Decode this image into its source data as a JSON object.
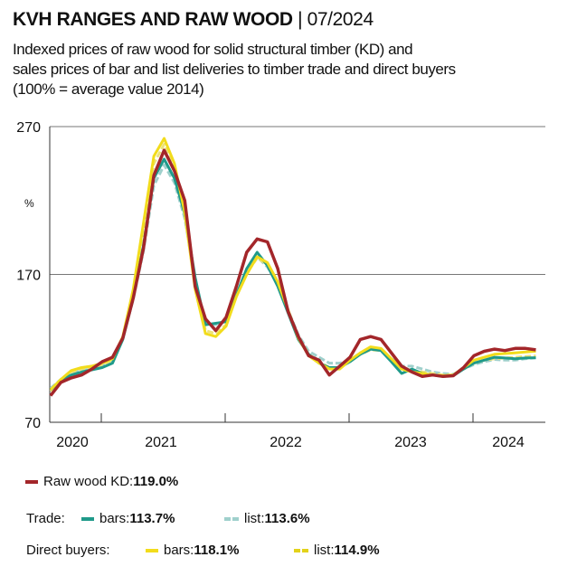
{
  "header": {
    "title": "KVH RANGES AND RAW WOOD",
    "separator": " | ",
    "date": "07/2024",
    "subtitle_lines": [
      "Indexed prices of raw wood for solid structural timber (KD) and",
      "sales prices of bar and list deliveries to timber trade and direct buyers",
      "(100% = average value 2014)"
    ]
  },
  "chart_data": {
    "type": "line",
    "ylabel": "%",
    "ylim": [
      70,
      270
    ],
    "yticks": [
      "270",
      "170",
      "70"
    ],
    "gridlines": [
      170,
      270
    ],
    "x_start": "2020-08",
    "x_end": "2024-07",
    "x_frequency": "monthly",
    "year_labels": [
      "2020",
      "2021",
      "2022",
      "2023",
      "2024"
    ],
    "legend_placement": "bottom",
    "series": [
      {
        "name": "Raw wood KD",
        "color": "#a3262a",
        "style": "solid",
        "values": [
          88,
          97,
          100,
          102,
          106,
          111,
          114,
          127,
          154,
          188,
          237,
          254,
          240,
          220,
          162,
          140,
          132,
          141,
          162,
          185,
          194,
          192,
          174,
          145,
          128,
          115,
          112,
          102,
          108,
          114,
          126,
          128,
          126,
          117,
          108,
          104,
          101,
          102,
          101,
          101.5,
          107,
          115,
          118,
          119.5,
          118.5,
          120,
          120,
          119
        ]
      },
      {
        "name": "bars",
        "group": "Trade",
        "color": "#1f9a8a",
        "style": "solid",
        "values": [
          92,
          98,
          102,
          104,
          105.5,
          107,
          110,
          126,
          154,
          190,
          235,
          248,
          235,
          211,
          168,
          136,
          137,
          138,
          156,
          174,
          185,
          176,
          162,
          144,
          126,
          116,
          110,
          107,
          107,
          111,
          116,
          119.5,
          118.5,
          111,
          103,
          106,
          103,
          102,
          101,
          101.5,
          106,
          110,
          112,
          114,
          113.5,
          113,
          113.5,
          113.7
        ]
      },
      {
        "name": "list",
        "group": "Trade",
        "color": "#9fd0cc",
        "style": "dashed",
        "values": [
          93,
          99,
          103,
          105,
          106,
          108,
          111,
          127,
          153,
          186,
          230,
          244,
          232,
          208,
          166,
          137,
          136,
          139,
          157,
          172,
          182,
          175,
          163,
          146,
          129,
          118,
          114,
          110,
          110,
          112,
          117,
          120,
          119,
          113,
          108,
          108,
          106,
          104,
          103,
          102.5,
          106,
          109,
          111,
          112.5,
          112,
          112,
          113,
          113.6
        ]
      },
      {
        "name": "bars",
        "group": "Direct buyers",
        "color": "#f2dc1c",
        "style": "solid",
        "values": [
          92,
          99,
          105,
          107,
          108,
          110,
          113,
          128,
          160,
          205,
          250,
          262,
          245,
          212,
          160,
          130,
          128,
          135,
          155,
          170,
          182,
          178,
          165,
          146,
          127,
          115,
          110,
          106,
          106,
          112,
          117,
          121,
          120,
          113,
          106,
          104,
          103,
          102,
          101.5,
          102,
          107,
          112,
          114,
          116,
          116.5,
          117,
          117.5,
          118.1
        ]
      },
      {
        "name": "list",
        "group": "Direct buyers",
        "color": "#ece27a",
        "style": "dashed",
        "values": [
          91,
          98,
          104,
          106,
          107,
          109,
          112,
          127,
          158,
          200,
          245,
          258,
          242,
          210,
          162,
          132,
          130,
          136,
          156,
          171,
          181,
          177,
          164,
          145,
          128,
          116,
          111,
          107,
          107,
          112,
          116,
          119,
          118.5,
          112,
          107,
          105,
          104,
          103,
          102,
          102,
          106,
          110,
          112,
          113,
          113.5,
          114,
          114.5,
          114.9
        ]
      }
    ]
  },
  "legend": {
    "raw": {
      "label": "Raw wood KD: ",
      "value": "119.0%"
    },
    "trade_label": "Trade:",
    "trade_bars": {
      "label": "bars: ",
      "value": "113.7%"
    },
    "trade_list": {
      "label": "list: ",
      "value": "113.6%"
    },
    "direct_label": "Direct buyers:",
    "direct_bars": {
      "label": "bars: ",
      "value": "118.1%"
    },
    "direct_list": {
      "label": "list: ",
      "value": "114.9%"
    }
  }
}
